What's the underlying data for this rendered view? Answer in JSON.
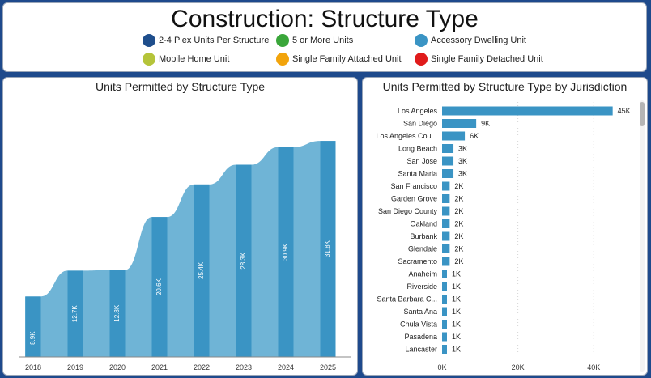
{
  "header": {
    "title": "Construction: Structure Type",
    "legend": [
      {
        "label": "2-4 Plex Units Per Structure",
        "color": "#1f4e8c"
      },
      {
        "label": "5 or More Units",
        "color": "#3aa63a"
      },
      {
        "label": "Accessory Dwelling Unit",
        "color": "#3a94c4"
      },
      {
        "label": "Mobile Home Unit",
        "color": "#b5c43a"
      },
      {
        "label": "Single Family Attached Unit",
        "color": "#f2a40c"
      },
      {
        "label": "Single Family Detached Unit",
        "color": "#e01b1b"
      }
    ]
  },
  "colors": {
    "bar": "#3a94c4",
    "ribbon": "#6fb4d6",
    "hbar": "#3a94c4"
  },
  "chart_data": [
    {
      "type": "area",
      "title": "Units Permitted by Structure Type",
      "categories": [
        "2018",
        "2019",
        "2020",
        "2021",
        "2022",
        "2023",
        "2024",
        "2025"
      ],
      "series": [
        {
          "name": "Accessory Dwelling Unit",
          "values": [
            8.9,
            12.7,
            12.8,
            20.6,
            25.4,
            28.3,
            30.9,
            31.8
          ],
          "labels": [
            "8.9K",
            "12.7K",
            "12.8K",
            "20.6K",
            "25.4K",
            "28.3K",
            "30.9K",
            "31.8K"
          ]
        }
      ],
      "ylim": [
        0,
        35
      ]
    },
    {
      "type": "bar",
      "title": "Units Permitted by Structure Type by Jurisdiction",
      "orientation": "horizontal",
      "categories": [
        "Los Angeles",
        "San Diego",
        "Los Angeles Cou...",
        "Long Beach",
        "San Jose",
        "Santa Maria",
        "San Francisco",
        "Garden Grove",
        "San Diego County",
        "Oakland",
        "Burbank",
        "Glendale",
        "Sacramento",
        "Anaheim",
        "Riverside",
        "Santa Barbara C...",
        "Santa Ana",
        "Chula Vista",
        "Pasadena",
        "Lancaster"
      ],
      "values": [
        45,
        9,
        6,
        3,
        3,
        3,
        2,
        2,
        2,
        2,
        2,
        2,
        2,
        1,
        1,
        1,
        1,
        1,
        1,
        1
      ],
      "labels": [
        "45K",
        "9K",
        "6K",
        "3K",
        "3K",
        "3K",
        "2K",
        "2K",
        "2K",
        "2K",
        "2K",
        "2K",
        "2K",
        "1K",
        "1K",
        "1K",
        "1K",
        "1K",
        "1K",
        "1K"
      ],
      "xticks": [
        "0K",
        "20K",
        "40K"
      ],
      "xlim": [
        0,
        48
      ]
    }
  ]
}
